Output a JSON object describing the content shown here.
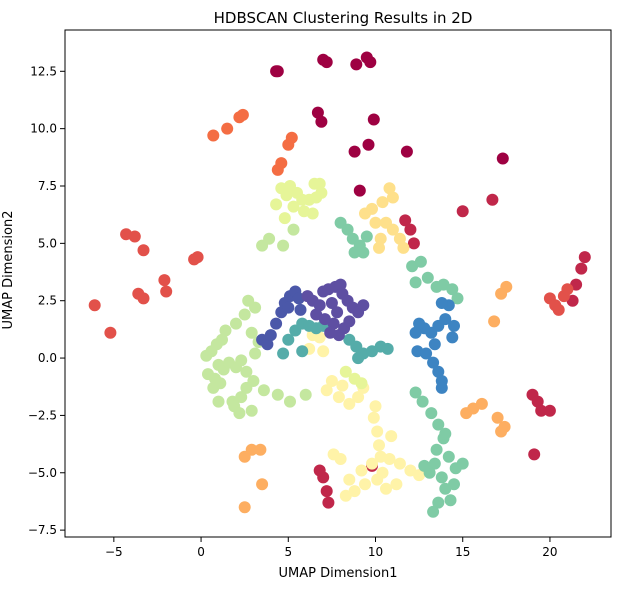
{
  "chart_data": {
    "type": "scatter",
    "title": "HDBSCAN Clustering Results in 2D",
    "xlabel": "UMAP Dimension1",
    "ylabel": "UMAP Dimension2",
    "xlim": [
      -7.8,
      23.5
    ],
    "ylim": [
      -7.8,
      14.3
    ],
    "xticks": [
      -5,
      0,
      5,
      10,
      15,
      20
    ],
    "yticks": [
      -7.5,
      -5.0,
      -2.5,
      0.0,
      2.5,
      5.0,
      7.5,
      10.0,
      12.5
    ],
    "grid": false,
    "legend": "none",
    "colormap": "Spectral",
    "series": [
      {
        "color": "#9e0142",
        "points": [
          [
            4.3,
            12.5
          ],
          [
            4.4,
            12.5
          ],
          [
            7.0,
            13.0
          ],
          [
            7.2,
            12.9
          ],
          [
            8.9,
            12.8
          ],
          [
            9.5,
            13.1
          ],
          [
            9.7,
            12.9
          ],
          [
            6.7,
            10.7
          ],
          [
            6.9,
            10.3
          ],
          [
            9.9,
            10.4
          ],
          [
            11.8,
            9.0
          ],
          [
            9.6,
            9.3
          ],
          [
            8.8,
            9.0
          ],
          [
            9.1,
            7.3
          ],
          [
            17.3,
            8.7
          ]
        ]
      },
      {
        "color": "#c0274a",
        "points": [
          [
            11.7,
            6.0
          ],
          [
            12.0,
            5.6
          ],
          [
            12.2,
            5.0
          ],
          [
            15.0,
            6.4
          ],
          [
            16.7,
            6.9
          ],
          [
            21.5,
            3.2
          ],
          [
            21.8,
            3.9
          ],
          [
            22.0,
            4.4
          ],
          [
            21.3,
            2.5
          ],
          [
            7.0,
            -5.2
          ],
          [
            7.2,
            -5.8
          ],
          [
            7.3,
            -6.3
          ],
          [
            6.8,
            -4.9
          ],
          [
            19.0,
            -1.6
          ],
          [
            19.3,
            -1.9
          ],
          [
            19.5,
            -2.3
          ],
          [
            20.0,
            -2.3
          ],
          [
            19.1,
            -4.2
          ],
          [
            9.8,
            -4.7
          ]
        ]
      },
      {
        "color": "#e2514a",
        "points": [
          [
            -6.1,
            2.3
          ],
          [
            -5.2,
            1.1
          ],
          [
            -4.3,
            5.4
          ],
          [
            -3.8,
            5.3
          ],
          [
            -3.3,
            4.7
          ],
          [
            -3.6,
            2.8
          ],
          [
            -3.3,
            2.6
          ],
          [
            -2.1,
            3.4
          ],
          [
            -2.0,
            2.9
          ],
          [
            -0.4,
            4.3
          ],
          [
            -0.2,
            4.4
          ],
          [
            20.0,
            2.6
          ],
          [
            20.3,
            2.3
          ],
          [
            20.5,
            2.1
          ],
          [
            20.8,
            2.7
          ],
          [
            21.0,
            3.0
          ]
        ]
      },
      {
        "color": "#f46d43",
        "points": [
          [
            0.7,
            9.7
          ],
          [
            1.5,
            10.0
          ],
          [
            2.2,
            10.5
          ],
          [
            2.4,
            10.6
          ],
          [
            4.4,
            8.2
          ],
          [
            4.6,
            8.5
          ],
          [
            5.0,
            9.3
          ],
          [
            5.2,
            9.6
          ]
        ]
      },
      {
        "color": "#fdae61",
        "points": [
          [
            2.9,
            -4.0
          ],
          [
            3.4,
            -4.0
          ],
          [
            2.5,
            -4.3
          ],
          [
            3.5,
            -5.5
          ],
          [
            2.5,
            -6.5
          ],
          [
            15.2,
            -2.4
          ],
          [
            15.6,
            -2.2
          ],
          [
            16.1,
            -2.0
          ],
          [
            17.0,
            -2.6
          ],
          [
            17.2,
            -3.2
          ],
          [
            17.4,
            -3.0
          ],
          [
            17.2,
            2.8
          ],
          [
            17.5,
            3.1
          ],
          [
            16.8,
            1.6
          ]
        ]
      },
      {
        "color": "#fee08b",
        "points": [
          [
            10.8,
            7.4
          ],
          [
            11.0,
            7.0
          ],
          [
            10.4,
            6.8
          ],
          [
            9.8,
            6.5
          ],
          [
            9.4,
            6.3
          ],
          [
            10.0,
            5.9
          ],
          [
            10.6,
            5.9
          ],
          [
            11.0,
            5.6
          ],
          [
            10.3,
            5.2
          ],
          [
            11.4,
            5.2
          ],
          [
            11.6,
            4.8
          ],
          [
            10.2,
            4.8
          ]
        ]
      },
      {
        "color": "#fff3a8",
        "points": [
          [
            9.9,
            -2.6
          ],
          [
            10.1,
            -3.2
          ],
          [
            10.2,
            -3.8
          ],
          [
            10.3,
            -4.3
          ],
          [
            10.4,
            -5.0
          ],
          [
            10.1,
            -5.3
          ],
          [
            9.4,
            -5.5
          ],
          [
            8.8,
            -5.8
          ],
          [
            8.3,
            -6.0
          ],
          [
            8.5,
            -5.3
          ],
          [
            9.2,
            -4.9
          ],
          [
            9.8,
            -4.6
          ],
          [
            10.8,
            -4.4
          ],
          [
            11.4,
            -4.6
          ],
          [
            12.0,
            -4.9
          ],
          [
            12.5,
            -5.1
          ],
          [
            11.2,
            -5.5
          ],
          [
            10.6,
            -5.7
          ],
          [
            8.0,
            -4.4
          ],
          [
            7.6,
            -4.2
          ],
          [
            10.9,
            -3.4
          ],
          [
            10.0,
            -2.1
          ],
          [
            8.1,
            -1.2
          ],
          [
            7.9,
            -1.7
          ],
          [
            8.5,
            -2.0
          ],
          [
            9.0,
            -1.7
          ],
          [
            9.3,
            -1.3
          ],
          [
            7.2,
            -1.4
          ],
          [
            7.5,
            -1.0
          ],
          [
            6.2,
            0.4
          ],
          [
            6.8,
            0.9
          ],
          [
            6.4,
            1.0
          ],
          [
            7.0,
            0.3
          ]
        ]
      },
      {
        "color": "#e6f598",
        "points": [
          [
            4.6,
            7.4
          ],
          [
            4.9,
            7.1
          ],
          [
            5.1,
            7.5
          ],
          [
            5.5,
            7.2
          ],
          [
            5.8,
            6.9
          ],
          [
            6.2,
            6.9
          ],
          [
            6.6,
            7.0
          ],
          [
            6.9,
            7.2
          ],
          [
            6.5,
            7.6
          ],
          [
            5.3,
            6.6
          ],
          [
            5.9,
            6.4
          ],
          [
            6.4,
            6.3
          ],
          [
            4.8,
            6.1
          ],
          [
            4.3,
            6.7
          ],
          [
            6.8,
            7.6
          ],
          [
            8.3,
            -0.6
          ],
          [
            8.8,
            -0.9
          ],
          [
            9.2,
            -1.1
          ]
        ]
      },
      {
        "color": "#c4e79f",
        "points": [
          [
            1.0,
            -0.3
          ],
          [
            1.3,
            -0.5
          ],
          [
            1.6,
            -0.2
          ],
          [
            2.0,
            -0.4
          ],
          [
            2.3,
            -0.1
          ],
          [
            2.6,
            -0.6
          ],
          [
            0.4,
            -0.7
          ],
          [
            0.3,
            0.1
          ],
          [
            0.6,
            0.3
          ],
          [
            0.8,
            -0.9
          ],
          [
            1.1,
            -1.1
          ],
          [
            0.9,
            0.6
          ],
          [
            1.2,
            0.8
          ],
          [
            1.4,
            1.2
          ],
          [
            2.0,
            1.5
          ],
          [
            2.5,
            1.9
          ],
          [
            2.7,
            2.5
          ],
          [
            3.1,
            2.2
          ],
          [
            2.9,
            1.1
          ],
          [
            3.3,
            0.7
          ],
          [
            3.1,
            0.2
          ],
          [
            2.6,
            -1.3
          ],
          [
            2.3,
            -1.7
          ],
          [
            1.8,
            -1.9
          ],
          [
            1.0,
            -1.9
          ],
          [
            0.7,
            -1.3
          ],
          [
            3.0,
            -1.0
          ],
          [
            3.6,
            -1.4
          ],
          [
            4.4,
            -1.6
          ],
          [
            5.1,
            -1.9
          ],
          [
            6.0,
            -1.6
          ],
          [
            2.9,
            -2.3
          ],
          [
            4.7,
            4.9
          ],
          [
            5.3,
            5.6
          ],
          [
            3.9,
            5.2
          ],
          [
            3.5,
            4.9
          ],
          [
            1.9,
            -2.1
          ],
          [
            2.2,
            -2.4
          ]
        ]
      },
      {
        "color": "#7fcba5",
        "points": [
          [
            8.0,
            5.9
          ],
          [
            8.4,
            5.6
          ],
          [
            8.7,
            5.2
          ],
          [
            9.1,
            4.9
          ],
          [
            9.3,
            4.6
          ],
          [
            8.8,
            4.6
          ],
          [
            9.5,
            5.3
          ],
          [
            12.1,
            4.0
          ],
          [
            12.6,
            4.2
          ],
          [
            12.3,
            3.3
          ],
          [
            13.0,
            3.5
          ],
          [
            13.5,
            3.1
          ],
          [
            13.9,
            3.2
          ],
          [
            14.4,
            3.0
          ],
          [
            14.7,
            2.6
          ],
          [
            12.3,
            -1.5
          ],
          [
            12.7,
            -1.9
          ],
          [
            13.2,
            -2.4
          ],
          [
            13.6,
            -2.9
          ],
          [
            13.9,
            -3.5
          ],
          [
            13.5,
            -4.0
          ],
          [
            13.4,
            -4.6
          ],
          [
            13.8,
            -5.2
          ],
          [
            14.0,
            -5.7
          ],
          [
            13.6,
            -6.3
          ],
          [
            13.3,
            -6.7
          ],
          [
            14.3,
            -6.2
          ],
          [
            14.5,
            -5.5
          ],
          [
            14.6,
            -4.8
          ],
          [
            14.2,
            -4.3
          ],
          [
            13.1,
            -5.0
          ],
          [
            12.8,
            -4.7
          ],
          [
            15.0,
            -4.6
          ],
          [
            14.0,
            -3.3
          ]
        ]
      },
      {
        "color": "#55aca9",
        "points": [
          [
            5.4,
            1.2
          ],
          [
            5.8,
            1.5
          ],
          [
            6.2,
            1.4
          ],
          [
            6.6,
            1.3
          ],
          [
            5.0,
            0.8
          ],
          [
            4.7,
            0.2
          ],
          [
            7.0,
            1.4
          ],
          [
            8.5,
            0.8
          ],
          [
            8.9,
            0.5
          ],
          [
            9.3,
            0.2
          ],
          [
            9.8,
            0.3
          ],
          [
            10.3,
            0.5
          ],
          [
            10.7,
            0.4
          ],
          [
            9.0,
            0.0
          ],
          [
            5.8,
            0.3
          ]
        ]
      },
      {
        "color": "#3d84c2",
        "points": [
          [
            12.4,
            0.3
          ],
          [
            12.9,
            0.2
          ],
          [
            13.3,
            -0.2
          ],
          [
            13.6,
            -0.6
          ],
          [
            13.8,
            -1.0
          ],
          [
            13.2,
            1.1
          ],
          [
            13.6,
            1.4
          ],
          [
            14.0,
            1.7
          ],
          [
            14.2,
            2.3
          ],
          [
            13.8,
            2.4
          ],
          [
            12.8,
            1.3
          ],
          [
            12.5,
            1.5
          ],
          [
            12.3,
            1.1
          ],
          [
            13.4,
            0.6
          ],
          [
            14.4,
            0.9
          ],
          [
            14.5,
            1.4
          ],
          [
            13.8,
            -1.3
          ]
        ]
      },
      {
        "color": "#4b58a9",
        "points": [
          [
            3.5,
            0.8
          ],
          [
            3.8,
            0.6
          ],
          [
            4.0,
            1.0
          ],
          [
            4.3,
            1.5
          ],
          [
            4.6,
            2.0
          ],
          [
            4.8,
            2.4
          ],
          [
            5.1,
            2.7
          ],
          [
            5.4,
            2.9
          ],
          [
            5.0,
            2.2
          ],
          [
            5.6,
            2.6
          ],
          [
            5.7,
            2.1
          ]
        ]
      },
      {
        "color": "#5e4fa2",
        "points": [
          [
            6.1,
            2.7
          ],
          [
            6.4,
            2.5
          ],
          [
            6.8,
            2.3
          ],
          [
            7.0,
            2.9
          ],
          [
            7.3,
            3.0
          ],
          [
            7.7,
            3.1
          ],
          [
            8.0,
            3.2
          ],
          [
            8.1,
            2.8
          ],
          [
            8.4,
            2.5
          ],
          [
            8.7,
            2.2
          ],
          [
            9.0,
            2.0
          ],
          [
            9.3,
            2.3
          ],
          [
            7.5,
            2.4
          ],
          [
            7.8,
            2.0
          ],
          [
            7.6,
            1.5
          ],
          [
            7.4,
            1.1
          ],
          [
            7.9,
            1.0
          ],
          [
            8.2,
            1.3
          ],
          [
            8.5,
            1.6
          ],
          [
            6.6,
            1.9
          ],
          [
            7.1,
            1.7
          ]
        ]
      }
    ]
  }
}
